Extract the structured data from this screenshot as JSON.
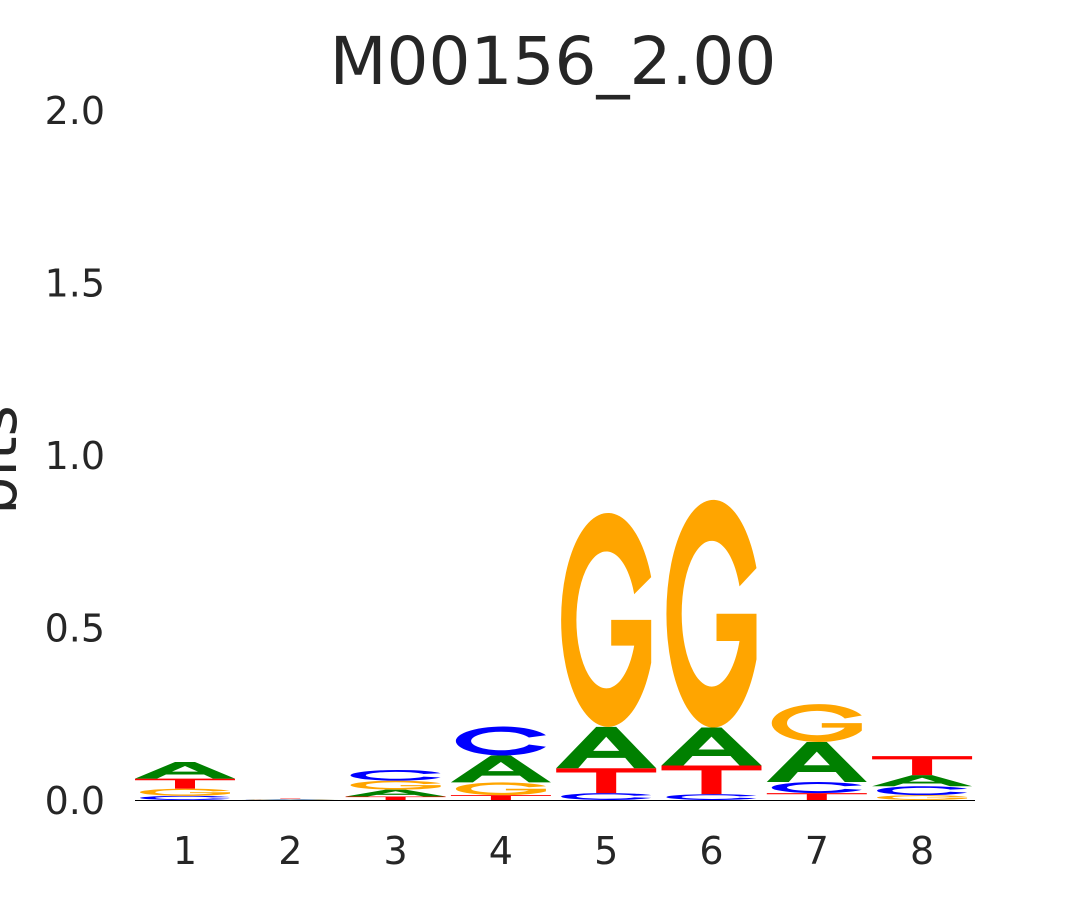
{
  "chart_data": {
    "type": "sequence-logo",
    "title": "M00156_2.00",
    "xlabel": "",
    "ylabel": "bits",
    "ylim": [
      0,
      2.0
    ],
    "yticks": [
      "0.0",
      "0.5",
      "1.0",
      "1.5",
      "2.0"
    ],
    "ytick_values": [
      0,
      0.5,
      1.0,
      1.5,
      2.0
    ],
    "categories": [
      "1",
      "2",
      "3",
      "4",
      "5",
      "6",
      "7",
      "8"
    ],
    "colors": {
      "A": "#008000",
      "C": "#0000ff",
      "G": "#ffa500",
      "T": "#ff0000"
    },
    "positions": [
      [
        [
          "C",
          0.012
        ],
        [
          "G",
          0.021
        ],
        [
          "T",
          0.029
        ],
        [
          "A",
          0.048
        ]
      ],
      [
        [
          "C",
          0.001
        ],
        [
          "G",
          0.001
        ],
        [
          "A",
          0.001
        ],
        [
          "T",
          0.001
        ]
      ],
      [
        [
          "T",
          0.01
        ],
        [
          "A",
          0.02
        ],
        [
          "G",
          0.026
        ],
        [
          "C",
          0.031
        ]
      ],
      [
        [
          "T",
          0.014
        ],
        [
          "G",
          0.037
        ],
        [
          "A",
          0.078
        ],
        [
          "C",
          0.084
        ]
      ],
      [
        [
          "C",
          0.02
        ],
        [
          "T",
          0.072
        ],
        [
          "A",
          0.12
        ],
        [
          "G",
          0.62
        ]
      ],
      [
        [
          "C",
          0.017
        ],
        [
          "T",
          0.083
        ],
        [
          "A",
          0.11
        ],
        [
          "G",
          0.66
        ]
      ],
      [
        [
          "T",
          0.02
        ],
        [
          "C",
          0.032
        ],
        [
          "A",
          0.116
        ],
        [
          "G",
          0.11
        ]
      ],
      [
        [
          "G",
          0.014
        ],
        [
          "C",
          0.026
        ],
        [
          "A",
          0.032
        ],
        [
          "T",
          0.055
        ]
      ]
    ]
  }
}
